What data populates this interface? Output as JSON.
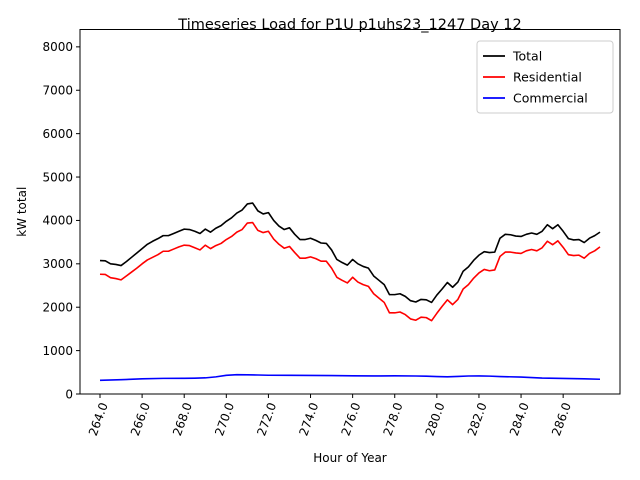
{
  "chart_data": {
    "type": "line",
    "title": "Timeseries Load for P1U p1uhs23_1247  Day 12",
    "xlabel": "Hour of Year",
    "ylabel": "kW total",
    "xlim": [
      263.05,
      288.7
    ],
    "ylim": [
      0,
      8400
    ],
    "x_ticks": [
      "264.0",
      "266.0",
      "268.0",
      "270.0",
      "272.0",
      "274.0",
      "276.0",
      "278.0",
      "280.0",
      "282.0",
      "284.0",
      "286.0"
    ],
    "x_tick_values": [
      264,
      266,
      268,
      270,
      272,
      274,
      276,
      278,
      280,
      282,
      284,
      286
    ],
    "y_ticks": [
      "0",
      "1000",
      "2000",
      "3000",
      "4000",
      "5000",
      "6000",
      "7000",
      "8000"
    ],
    "y_tick_values": [
      0,
      1000,
      2000,
      3000,
      4000,
      5000,
      6000,
      7000,
      8000
    ],
    "grid": false,
    "legend_position": "top-right",
    "series": [
      {
        "name": "Total",
        "color": "#000000",
        "points": [
          [
            264.0,
            3075
          ],
          [
            264.25,
            3070
          ],
          [
            264.5,
            3000
          ],
          [
            264.75,
            2985
          ],
          [
            265.0,
            2960
          ],
          [
            265.25,
            3050
          ],
          [
            265.5,
            3150
          ],
          [
            265.75,
            3250
          ],
          [
            266.0,
            3350
          ],
          [
            266.25,
            3450
          ],
          [
            266.5,
            3520
          ],
          [
            266.75,
            3580
          ],
          [
            267.0,
            3650
          ],
          [
            267.25,
            3650
          ],
          [
            267.5,
            3700
          ],
          [
            267.75,
            3750
          ],
          [
            268.0,
            3800
          ],
          [
            268.25,
            3790
          ],
          [
            268.5,
            3750
          ],
          [
            268.75,
            3700
          ],
          [
            269.0,
            3800
          ],
          [
            269.25,
            3730
          ],
          [
            269.5,
            3820
          ],
          [
            269.75,
            3880
          ],
          [
            270.0,
            3980
          ],
          [
            270.25,
            4060
          ],
          [
            270.5,
            4170
          ],
          [
            270.75,
            4240
          ],
          [
            271.0,
            4380
          ],
          [
            271.25,
            4400
          ],
          [
            271.5,
            4220
          ],
          [
            271.75,
            4150
          ],
          [
            272.0,
            4180
          ],
          [
            272.25,
            4000
          ],
          [
            272.5,
            3870
          ],
          [
            272.75,
            3790
          ],
          [
            273.0,
            3830
          ],
          [
            273.25,
            3680
          ],
          [
            273.5,
            3560
          ],
          [
            273.75,
            3560
          ],
          [
            274.0,
            3590
          ],
          [
            274.25,
            3540
          ],
          [
            274.5,
            3480
          ],
          [
            274.75,
            3470
          ],
          [
            275.0,
            3320
          ],
          [
            275.25,
            3100
          ],
          [
            275.5,
            3030
          ],
          [
            275.75,
            2970
          ],
          [
            276.0,
            3100
          ],
          [
            276.25,
            3000
          ],
          [
            276.5,
            2940
          ],
          [
            276.75,
            2900
          ],
          [
            277.0,
            2720
          ],
          [
            277.25,
            2620
          ],
          [
            277.5,
            2520
          ],
          [
            277.75,
            2290
          ],
          [
            278.0,
            2290
          ],
          [
            278.25,
            2310
          ],
          [
            278.5,
            2250
          ],
          [
            278.75,
            2150
          ],
          [
            279.0,
            2120
          ],
          [
            279.25,
            2180
          ],
          [
            279.5,
            2170
          ],
          [
            279.75,
            2110
          ],
          [
            280.0,
            2280
          ],
          [
            280.25,
            2420
          ],
          [
            280.5,
            2570
          ],
          [
            280.75,
            2460
          ],
          [
            281.0,
            2580
          ],
          [
            281.25,
            2830
          ],
          [
            281.5,
            2930
          ],
          [
            281.75,
            3080
          ],
          [
            282.0,
            3200
          ],
          [
            282.25,
            3280
          ],
          [
            282.5,
            3260
          ],
          [
            282.75,
            3270
          ],
          [
            283.0,
            3590
          ],
          [
            283.25,
            3680
          ],
          [
            283.5,
            3670
          ],
          [
            283.75,
            3640
          ],
          [
            284.0,
            3630
          ],
          [
            284.25,
            3680
          ],
          [
            284.5,
            3710
          ],
          [
            284.75,
            3680
          ],
          [
            285.0,
            3750
          ],
          [
            285.25,
            3900
          ],
          [
            285.5,
            3810
          ],
          [
            285.75,
            3900
          ],
          [
            286.0,
            3750
          ],
          [
            286.25,
            3580
          ],
          [
            286.5,
            3550
          ],
          [
            286.75,
            3560
          ],
          [
            287.0,
            3490
          ],
          [
            287.25,
            3590
          ],
          [
            287.5,
            3650
          ],
          [
            287.75,
            3730
          ]
        ]
      },
      {
        "name": "Residential",
        "color": "#ff0000",
        "points": [
          [
            264.0,
            2760
          ],
          [
            264.25,
            2755
          ],
          [
            264.5,
            2680
          ],
          [
            264.75,
            2660
          ],
          [
            265.0,
            2630
          ],
          [
            265.25,
            2720
          ],
          [
            265.5,
            2810
          ],
          [
            265.75,
            2900
          ],
          [
            266.0,
            3000
          ],
          [
            266.25,
            3090
          ],
          [
            266.5,
            3150
          ],
          [
            266.75,
            3210
          ],
          [
            267.0,
            3290
          ],
          [
            267.25,
            3290
          ],
          [
            267.5,
            3340
          ],
          [
            267.75,
            3390
          ],
          [
            268.0,
            3430
          ],
          [
            268.25,
            3420
          ],
          [
            268.5,
            3370
          ],
          [
            268.75,
            3320
          ],
          [
            269.0,
            3430
          ],
          [
            269.25,
            3350
          ],
          [
            269.5,
            3420
          ],
          [
            269.75,
            3470
          ],
          [
            270.0,
            3560
          ],
          [
            270.25,
            3630
          ],
          [
            270.5,
            3730
          ],
          [
            270.75,
            3790
          ],
          [
            271.0,
            3940
          ],
          [
            271.25,
            3950
          ],
          [
            271.5,
            3770
          ],
          [
            271.75,
            3720
          ],
          [
            272.0,
            3750
          ],
          [
            272.25,
            3570
          ],
          [
            272.5,
            3450
          ],
          [
            272.75,
            3360
          ],
          [
            273.0,
            3400
          ],
          [
            273.25,
            3260
          ],
          [
            273.5,
            3130
          ],
          [
            273.75,
            3130
          ],
          [
            274.0,
            3160
          ],
          [
            274.25,
            3120
          ],
          [
            274.5,
            3060
          ],
          [
            274.75,
            3060
          ],
          [
            275.0,
            2900
          ],
          [
            275.25,
            2690
          ],
          [
            275.5,
            2620
          ],
          [
            275.75,
            2560
          ],
          [
            276.0,
            2690
          ],
          [
            276.25,
            2580
          ],
          [
            276.5,
            2520
          ],
          [
            276.75,
            2480
          ],
          [
            277.0,
            2310
          ],
          [
            277.25,
            2210
          ],
          [
            277.5,
            2110
          ],
          [
            277.75,
            1870
          ],
          [
            278.0,
            1870
          ],
          [
            278.25,
            1890
          ],
          [
            278.5,
            1830
          ],
          [
            278.75,
            1730
          ],
          [
            279.0,
            1700
          ],
          [
            279.25,
            1770
          ],
          [
            279.5,
            1760
          ],
          [
            279.75,
            1690
          ],
          [
            280.0,
            1860
          ],
          [
            280.25,
            2020
          ],
          [
            280.5,
            2170
          ],
          [
            280.75,
            2060
          ],
          [
            281.0,
            2180
          ],
          [
            281.25,
            2420
          ],
          [
            281.5,
            2520
          ],
          [
            281.75,
            2670
          ],
          [
            282.0,
            2790
          ],
          [
            282.25,
            2870
          ],
          [
            282.5,
            2840
          ],
          [
            282.75,
            2860
          ],
          [
            283.0,
            3170
          ],
          [
            283.25,
            3270
          ],
          [
            283.5,
            3270
          ],
          [
            283.75,
            3250
          ],
          [
            284.0,
            3240
          ],
          [
            284.25,
            3300
          ],
          [
            284.5,
            3330
          ],
          [
            284.75,
            3300
          ],
          [
            285.0,
            3370
          ],
          [
            285.25,
            3520
          ],
          [
            285.5,
            3440
          ],
          [
            285.75,
            3530
          ],
          [
            286.0,
            3380
          ],
          [
            286.25,
            3210
          ],
          [
            286.5,
            3190
          ],
          [
            286.75,
            3200
          ],
          [
            287.0,
            3130
          ],
          [
            287.25,
            3240
          ],
          [
            287.5,
            3300
          ],
          [
            287.75,
            3390
          ]
        ]
      },
      {
        "name": "Commercial",
        "color": "#0000ff",
        "points": [
          [
            264.0,
            315
          ],
          [
            265.0,
            330
          ],
          [
            266.0,
            350
          ],
          [
            267.0,
            360
          ],
          [
            268.0,
            362
          ],
          [
            268.5,
            365
          ],
          [
            269.0,
            372
          ],
          [
            269.5,
            395
          ],
          [
            270.0,
            430
          ],
          [
            270.5,
            445
          ],
          [
            271.0,
            443
          ],
          [
            271.5,
            438
          ],
          [
            272.0,
            432
          ],
          [
            273.0,
            430
          ],
          [
            274.0,
            428
          ],
          [
            275.0,
            424
          ],
          [
            276.0,
            420
          ],
          [
            277.0,
            416
          ],
          [
            278.0,
            418
          ],
          [
            279.0,
            415
          ],
          [
            279.5,
            410
          ],
          [
            280.0,
            402
          ],
          [
            280.5,
            395
          ],
          [
            281.0,
            405
          ],
          [
            281.5,
            415
          ],
          [
            282.0,
            416
          ],
          [
            282.5,
            412
          ],
          [
            283.0,
            402
          ],
          [
            284.0,
            390
          ],
          [
            285.0,
            368
          ],
          [
            286.0,
            358
          ],
          [
            287.0,
            350
          ],
          [
            287.75,
            340
          ]
        ]
      }
    ]
  }
}
